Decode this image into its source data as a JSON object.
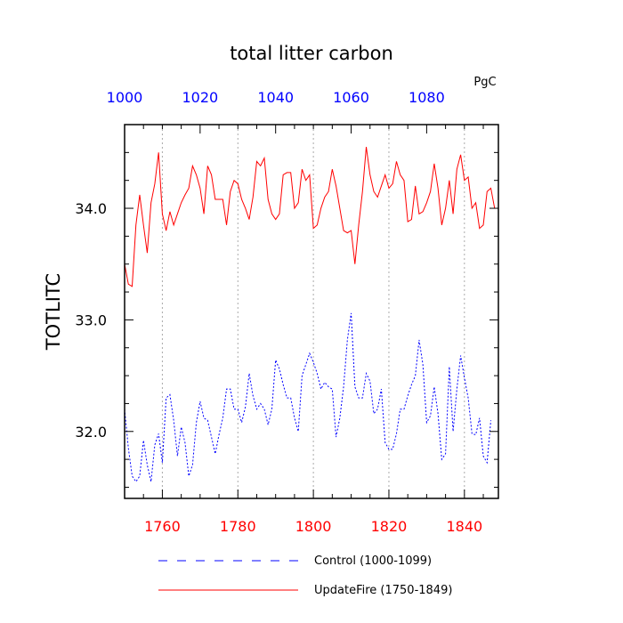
{
  "chart_data": {
    "type": "line",
    "title": "total litter carbon",
    "units": "PgC",
    "ylabel": "TOTLITC",
    "ylim": [
      31.4,
      34.75
    ],
    "y_ticks": [
      32.0,
      33.0,
      34.0
    ],
    "y_tick_labels": [
      "32.0",
      "33.0",
      "34.0"
    ],
    "grid": "vertical dotted lines at labeled x ticks",
    "legend_position": "bottom",
    "x_axes": {
      "bottom": {
        "range": [
          1750,
          1849
        ],
        "ticks": [
          1760,
          1780,
          1800,
          1820,
          1840
        ],
        "tick_labels": [
          "1760",
          "1780",
          "1800",
          "1820",
          "1840"
        ],
        "color": "#ff0000"
      },
      "top": {
        "range": [
          1000,
          1099
        ],
        "ticks": [
          1000,
          1020,
          1040,
          1060,
          1080
        ],
        "tick_labels": [
          "1000",
          "1020",
          "1040",
          "1060",
          "1080"
        ],
        "color": "#0000ff"
      }
    },
    "series": [
      {
        "name": "Control (1000-1099)",
        "axis": "top",
        "color": "#0000ff",
        "dash": "dashed",
        "x_start": 1000,
        "values": [
          32.2,
          31.85,
          31.6,
          31.55,
          31.6,
          31.92,
          31.7,
          31.55,
          31.88,
          31.98,
          31.72,
          32.3,
          32.33,
          32.1,
          31.78,
          32.04,
          31.9,
          31.6,
          31.7,
          32.08,
          32.27,
          32.12,
          32.1,
          31.95,
          31.8,
          31.97,
          32.12,
          32.38,
          32.38,
          32.2,
          32.2,
          32.08,
          32.22,
          32.52,
          32.32,
          32.2,
          32.25,
          32.2,
          32.06,
          32.2,
          32.64,
          32.56,
          32.42,
          32.3,
          32.3,
          32.12,
          32.0,
          32.5,
          32.6,
          32.7,
          32.62,
          32.52,
          32.38,
          32.44,
          32.4,
          32.38,
          31.95,
          32.12,
          32.4,
          32.82,
          33.06,
          32.4,
          32.3,
          32.3,
          32.52,
          32.45,
          32.16,
          32.2,
          32.38,
          31.9,
          31.84,
          31.84,
          31.98,
          32.2,
          32.2,
          32.32,
          32.42,
          32.5,
          32.82,
          32.6,
          32.08,
          32.14,
          32.4,
          32.16,
          31.75,
          31.8,
          32.58,
          32.0,
          32.38,
          32.68,
          32.48,
          32.3,
          31.98,
          31.97,
          32.12,
          31.78,
          31.72,
          32.1
        ]
      },
      {
        "name": "UpdateFire (1750-1849)",
        "axis": "bottom",
        "color": "#ff0000",
        "dash": "solid",
        "x_start": 1750,
        "values": [
          33.5,
          33.32,
          33.3,
          33.85,
          34.12,
          33.85,
          33.6,
          34.05,
          34.22,
          34.5,
          33.95,
          33.8,
          33.97,
          33.85,
          33.95,
          34.05,
          34.12,
          34.18,
          34.38,
          34.3,
          34.18,
          33.95,
          34.38,
          34.3,
          34.08,
          34.08,
          34.08,
          33.85,
          34.15,
          34.25,
          34.22,
          34.08,
          34.0,
          33.9,
          34.1,
          34.42,
          34.38,
          34.45,
          34.08,
          33.95,
          33.9,
          33.95,
          34.3,
          34.32,
          34.32,
          34.0,
          34.05,
          34.35,
          34.25,
          34.3,
          33.82,
          33.85,
          34.0,
          34.1,
          34.15,
          34.35,
          34.2,
          34.0,
          33.8,
          33.78,
          33.8,
          33.5,
          33.85,
          34.15,
          34.55,
          34.3,
          34.15,
          34.1,
          34.2,
          34.3,
          34.18,
          34.22,
          34.42,
          34.3,
          34.25,
          33.88,
          33.9,
          34.2,
          33.95,
          33.97,
          34.05,
          34.15,
          34.4,
          34.18,
          33.85,
          34.0,
          34.25,
          33.95,
          34.35,
          34.48,
          34.25,
          34.28,
          34.0,
          34.05,
          33.82,
          33.85,
          34.15,
          34.18,
          34.0
        ]
      }
    ]
  }
}
